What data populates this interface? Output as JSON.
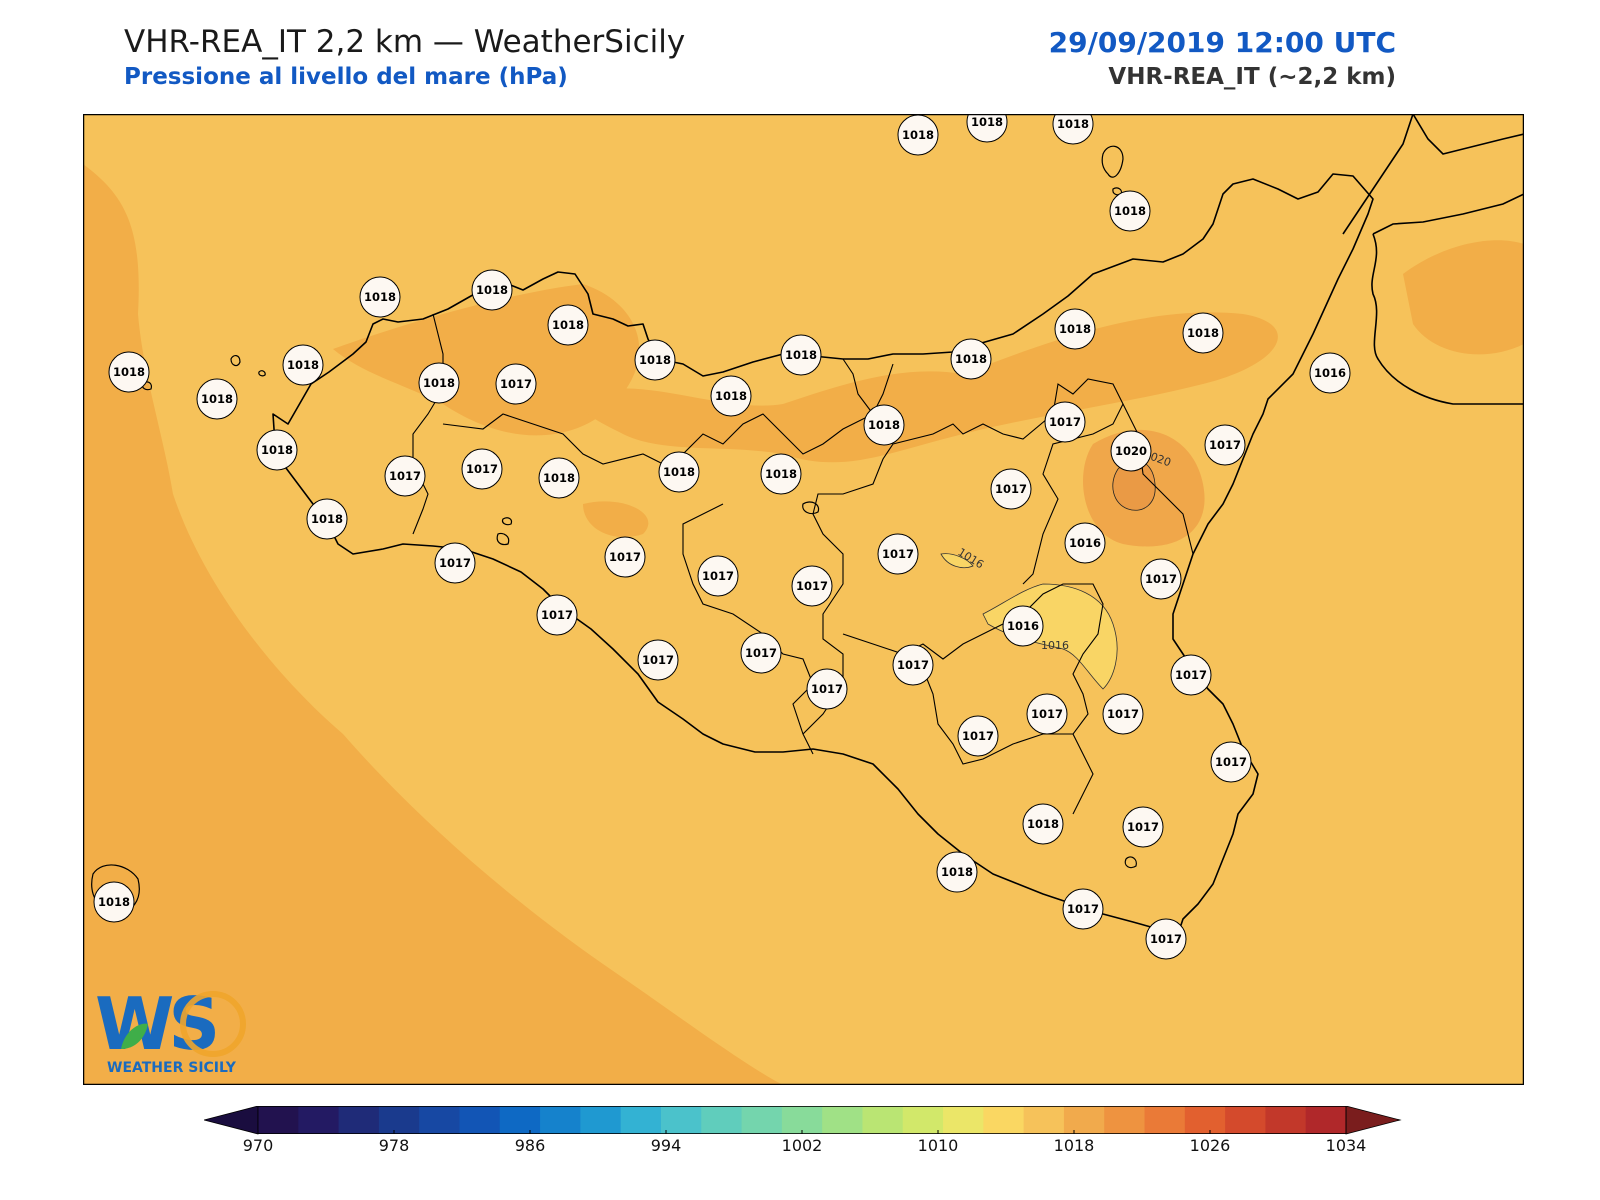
{
  "header": {
    "title": "VHR-REA_IT 2,2 km — WeatherSicily",
    "subtitle": "Pressione al livello del mare (hPa)",
    "datetime": "29/09/2019 12:00 UTC",
    "model": "VHR-REA_IT (~2,2 km)"
  },
  "map": {
    "background_color": "#f6c25a",
    "darker_band_color": "#f2ae48",
    "high_center_color": "#ea9a45",
    "low_patch_color": "#f9d565",
    "contour_labels": [
      "1016",
      "1016",
      "1020"
    ]
  },
  "stations": [
    {
      "value": "1018"
    },
    {
      "value": "1018"
    },
    {
      "value": "1018"
    },
    {
      "value": "1018"
    },
    {
      "value": "1018"
    },
    {
      "value": "1018"
    },
    {
      "value": "1018"
    },
    {
      "value": "1018"
    },
    {
      "value": "1018"
    },
    {
      "value": "1018"
    },
    {
      "value": "1018"
    },
    {
      "value": "1017"
    },
    {
      "value": "1016"
    },
    {
      "value": "1018"
    },
    {
      "value": "1018"
    },
    {
      "value": "1018"
    },
    {
      "value": "1018"
    },
    {
      "value": "1018"
    },
    {
      "value": "1018"
    },
    {
      "value": "1018"
    },
    {
      "value": "1017"
    },
    {
      "value": "1020"
    },
    {
      "value": "1017"
    },
    {
      "value": "1018"
    },
    {
      "value": "1017"
    },
    {
      "value": "1017"
    },
    {
      "value": "1018"
    },
    {
      "value": "1018"
    },
    {
      "value": "1018"
    },
    {
      "value": "1017"
    },
    {
      "value": "1018"
    },
    {
      "value": "1017"
    },
    {
      "value": "1016"
    },
    {
      "value": "1017"
    },
    {
      "value": "1017"
    },
    {
      "value": "1017"
    },
    {
      "value": "1017"
    },
    {
      "value": "1017"
    },
    {
      "value": "1016"
    },
    {
      "value": "1017"
    },
    {
      "value": "1017"
    },
    {
      "value": "1017"
    },
    {
      "value": "1017"
    },
    {
      "value": "1017"
    },
    {
      "value": "1017"
    },
    {
      "value": "1017"
    },
    {
      "value": "1017"
    },
    {
      "value": "1017"
    },
    {
      "value": "1017"
    },
    {
      "value": "1018"
    },
    {
      "value": "1017"
    },
    {
      "value": "1018"
    },
    {
      "value": "1017"
    },
    {
      "value": "1017"
    },
    {
      "value": "1018"
    }
  ],
  "colorbar": {
    "min": 970,
    "max": 1034,
    "step": 4,
    "colors": [
      "#22124f",
      "#231a63",
      "#1f2b78",
      "#1a3a8d",
      "#1748a3",
      "#1255b5",
      "#0e69c4",
      "#1582cc",
      "#1f99d1",
      "#33b2d3",
      "#4bc2cb",
      "#60cdbc",
      "#74d5ad",
      "#88db9a",
      "#a0e186",
      "#bae573",
      "#d2e86a",
      "#ebe668",
      "#fad762",
      "#f6c25a",
      "#f1aa4c",
      "#ee9340",
      "#ea7a37",
      "#e2602f",
      "#d44a2c",
      "#c2382a",
      "#b0282a"
    ],
    "under_color": "#1a0d3f",
    "over_color": "#7a1d1d",
    "tick_labels": [
      "970",
      "978",
      "986",
      "994",
      "1002",
      "1010",
      "1018",
      "1026",
      "1034"
    ]
  },
  "logo": {
    "letters": "WS",
    "text": "WEATHER SICILY"
  }
}
